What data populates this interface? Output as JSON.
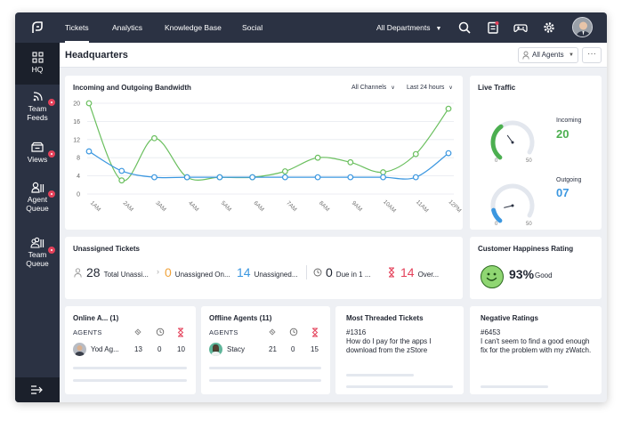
{
  "nav": {
    "tabs": [
      {
        "label": "Tickets",
        "active": true
      },
      {
        "label": "Analytics"
      },
      {
        "label": "Knowledge Base"
      },
      {
        "label": "Social"
      }
    ],
    "department": "All Departments",
    "icons": [
      "search-icon",
      "notes-icon",
      "gamepad-icon",
      "gear-icon",
      "user-avatar"
    ]
  },
  "sidebar": {
    "items": [
      {
        "label": "HQ",
        "icon": "grid-icon",
        "active": true
      },
      {
        "label": "Team\nFeeds",
        "icon": "feed-icon",
        "badge": true
      },
      {
        "label": "Views",
        "icon": "inbox-icon",
        "badge": true
      },
      {
        "label": "Agent\nQueue",
        "icon": "agent-queue-icon",
        "badge": true
      },
      {
        "label": "Team\nQueue",
        "icon": "team-queue-icon",
        "badge": true
      }
    ],
    "collapse_icon": "collapse-icon"
  },
  "header": {
    "title": "Headquarters",
    "agents_filter": "All Agents",
    "more": "···"
  },
  "bandwidth": {
    "title": "Incoming and Outgoing Bandwidth",
    "channel_filter": "All Channels",
    "time_filter": "Last 24 hours"
  },
  "chart_data": {
    "type": "line",
    "title": "Incoming and Outgoing Bandwidth",
    "xlabel": "",
    "ylabel": "",
    "categories": [
      "1AM",
      "2AM",
      "3AM",
      "4AM",
      "5AM",
      "6AM",
      "7AM",
      "8AM",
      "9AM",
      "10AM",
      "11AM",
      "12PM"
    ],
    "x": [
      0,
      1,
      2,
      3,
      4,
      5,
      6,
      7,
      8,
      9,
      10,
      11
    ],
    "ylim": [
      0,
      20
    ],
    "yticks": [
      0,
      4,
      8,
      12,
      16,
      20
    ],
    "grid": true,
    "series": [
      {
        "color": "#6abf5e",
        "values": [
          20,
          3,
          12.3,
          3.7,
          3.7,
          3.7,
          5,
          8,
          7,
          4.8,
          8.8,
          18.8
        ]
      },
      {
        "color": "#3b97e0",
        "values": [
          9.4,
          5.1,
          3.7,
          3.7,
          3.7,
          3.7,
          3.7,
          3.7,
          3.7,
          3.7,
          3.7,
          9
        ]
      }
    ]
  },
  "live_traffic": {
    "title": "Live Traffic",
    "gauges": [
      {
        "label": "Incoming",
        "value": "20",
        "min": "0",
        "max": "50",
        "level": 20,
        "color": "#4caf50"
      },
      {
        "label": "Outgoing",
        "value": "07",
        "min": "0",
        "max": "50",
        "level": 7,
        "color": "#3b97e0"
      }
    ]
  },
  "unassigned": {
    "title": "Unassigned Tickets",
    "items": [
      {
        "value": "28",
        "label": "Total Unassi...",
        "color": "#1f2430",
        "icon": "person-icon"
      },
      {
        "value": "0",
        "label": "Unassigned On...",
        "color": "#f0a33b"
      },
      {
        "value": "14",
        "label": "Unassigned...",
        "color": "#3b97e0"
      },
      {
        "value": "0",
        "label": "Due in 1 ...",
        "color": "#1f2430",
        "icon": "clock-icon"
      },
      {
        "value": "14",
        "label": "Over...",
        "color": "#e4415a",
        "icon": "hourglass-icon"
      }
    ]
  },
  "happiness": {
    "title": "Customer Happiness Rating",
    "percent": "93%",
    "word": "Good"
  },
  "online_agents": {
    "title": "Online A... (1)",
    "head": "AGENTS",
    "row": {
      "name": "Yod Ag...",
      "c1": "13",
      "c2": "0",
      "c3": "10"
    }
  },
  "offline_agents": {
    "title": "Offline Agents (11)",
    "head": "AGENTS",
    "row": {
      "name": "Stacy",
      "c1": "21",
      "c2": "0",
      "c3": "15"
    }
  },
  "threaded": {
    "title": "Most Threaded Tickets",
    "id": "#1316",
    "text": "How do I pay for the apps I download from the zStore"
  },
  "negative": {
    "title": "Negative Ratings",
    "id": "#6453",
    "text": "I can't seem to find a good enough fix for the problem with my zWatch."
  }
}
